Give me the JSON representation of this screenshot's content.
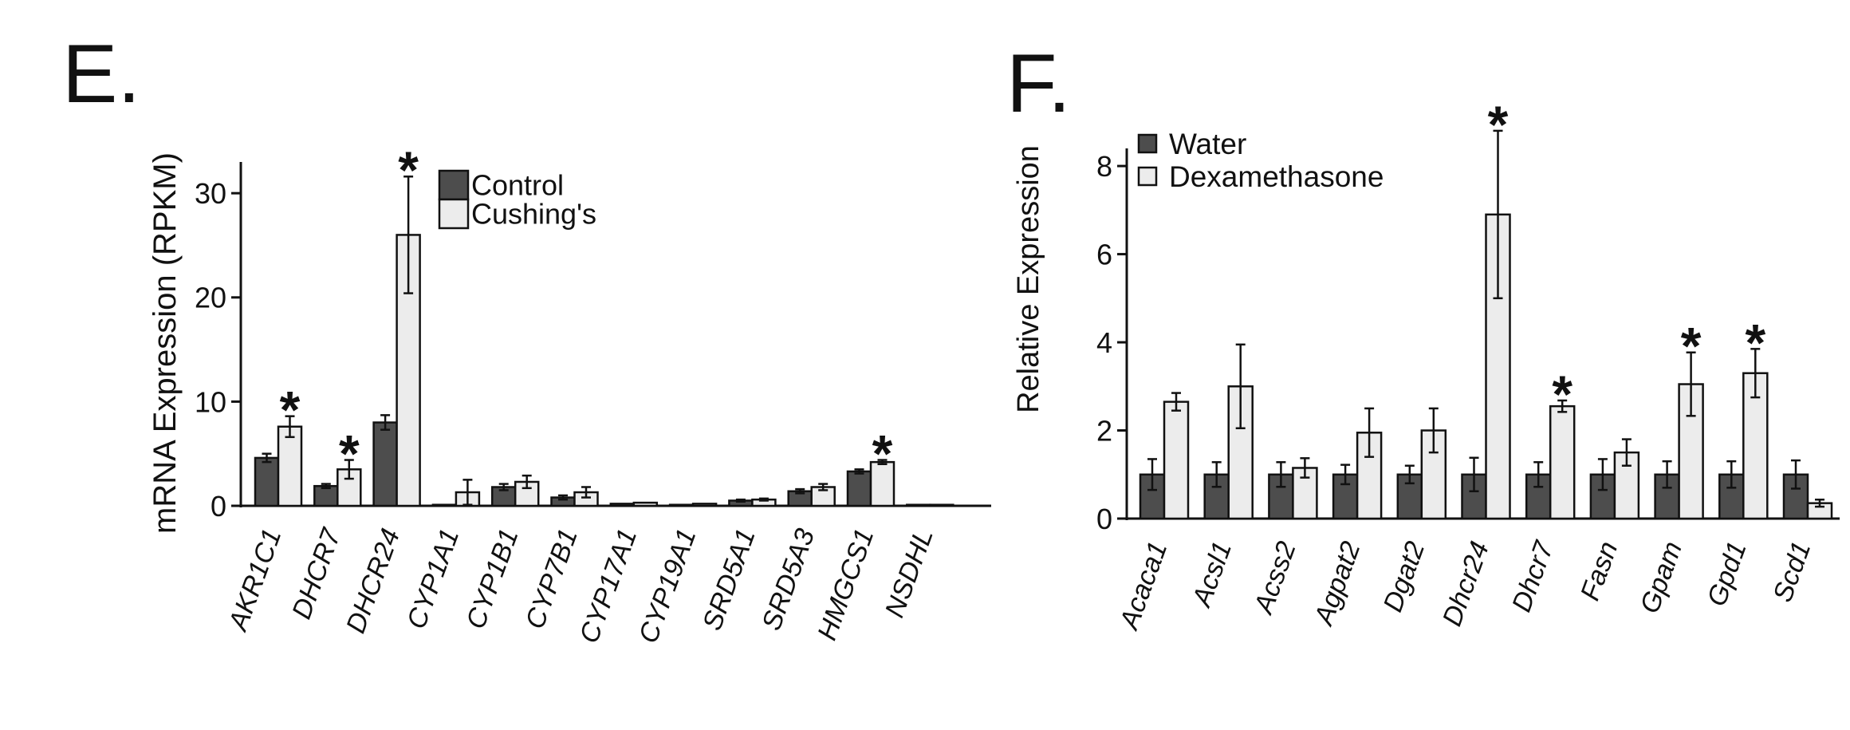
{
  "colors": {
    "series_dark": "#4d4d4d",
    "series_light": "#ececec",
    "stroke": "#111111"
  },
  "chart_data": [
    {
      "panel_label": "E.",
      "type": "bar",
      "title": "",
      "xlabel": "",
      "ylabel": "mRNA Expression (RPKM)",
      "ylim": [
        0,
        33
      ],
      "yticks": [
        0,
        10,
        20,
        30
      ],
      "grid": false,
      "legend_position": "top-right",
      "categories": [
        "AKR1C1",
        "DHCR7",
        "DHCR24",
        "CYP1A1",
        "CYP1B1",
        "CYP7B1",
        "CYP17A1",
        "CYP19A1",
        "SRD5A1",
        "SRD5A3",
        "HMGCS1",
        "NSDHL"
      ],
      "series": [
        {
          "name": "Control",
          "values": [
            4.6,
            1.9,
            8.0,
            0.1,
            1.8,
            0.8,
            0.2,
            0.1,
            0.5,
            1.4,
            3.3,
            0.1
          ],
          "errors": [
            0.4,
            0.2,
            0.7,
            0.05,
            0.3,
            0.2,
            0.05,
            0.05,
            0.1,
            0.2,
            0.2,
            0.05
          ]
        },
        {
          "name": "Cushing's",
          "values": [
            7.6,
            3.5,
            26.0,
            1.3,
            2.3,
            1.3,
            0.3,
            0.2,
            0.6,
            1.8,
            4.2,
            0.1
          ],
          "errors": [
            1.0,
            0.9,
            5.6,
            1.2,
            0.6,
            0.5,
            0.05,
            0.05,
            0.1,
            0.3,
            0.2,
            0.05
          ]
        }
      ],
      "annotations": [
        {
          "text": "*",
          "category": "AKR1C1"
        },
        {
          "text": "*",
          "category": "DHCR7"
        },
        {
          "text": "*",
          "category": "DHCR24"
        },
        {
          "text": "*",
          "category": "HMGCS1"
        }
      ]
    },
    {
      "panel_label": "F.",
      "type": "bar",
      "title": "",
      "xlabel": "",
      "ylabel": "Relative Expression",
      "ylim": [
        0,
        8.4
      ],
      "yticks": [
        0,
        2,
        4,
        6,
        8
      ],
      "grid": false,
      "legend_position": "top-left",
      "categories": [
        "Acaca1",
        "Acsl1",
        "Acss2",
        "Agpat2",
        "Dgat2",
        "Dhcr24",
        "Dhcr7",
        "Fasn",
        "Gpam",
        "Gpd1",
        "Scd1"
      ],
      "series": [
        {
          "name": "Water",
          "values": [
            1.0,
            1.0,
            1.0,
            1.0,
            1.0,
            1.0,
            1.0,
            1.0,
            1.0,
            1.0,
            1.0
          ],
          "errors": [
            0.35,
            0.28,
            0.28,
            0.22,
            0.2,
            0.38,
            0.28,
            0.35,
            0.3,
            0.3,
            0.32
          ]
        },
        {
          "name": "Dexamethasone",
          "values": [
            2.65,
            3.0,
            1.15,
            1.95,
            2.0,
            6.9,
            2.55,
            1.5,
            3.05,
            3.3,
            0.35
          ],
          "errors": [
            0.2,
            0.95,
            0.22,
            0.55,
            0.5,
            1.9,
            0.13,
            0.3,
            0.72,
            0.55,
            0.08
          ]
        }
      ],
      "annotations": [
        {
          "text": "*",
          "category": "Dhcr24"
        },
        {
          "text": "*",
          "category": "Dhcr7"
        },
        {
          "text": "*",
          "category": "Gpam"
        },
        {
          "text": "*",
          "category": "Gpd1"
        }
      ]
    }
  ]
}
